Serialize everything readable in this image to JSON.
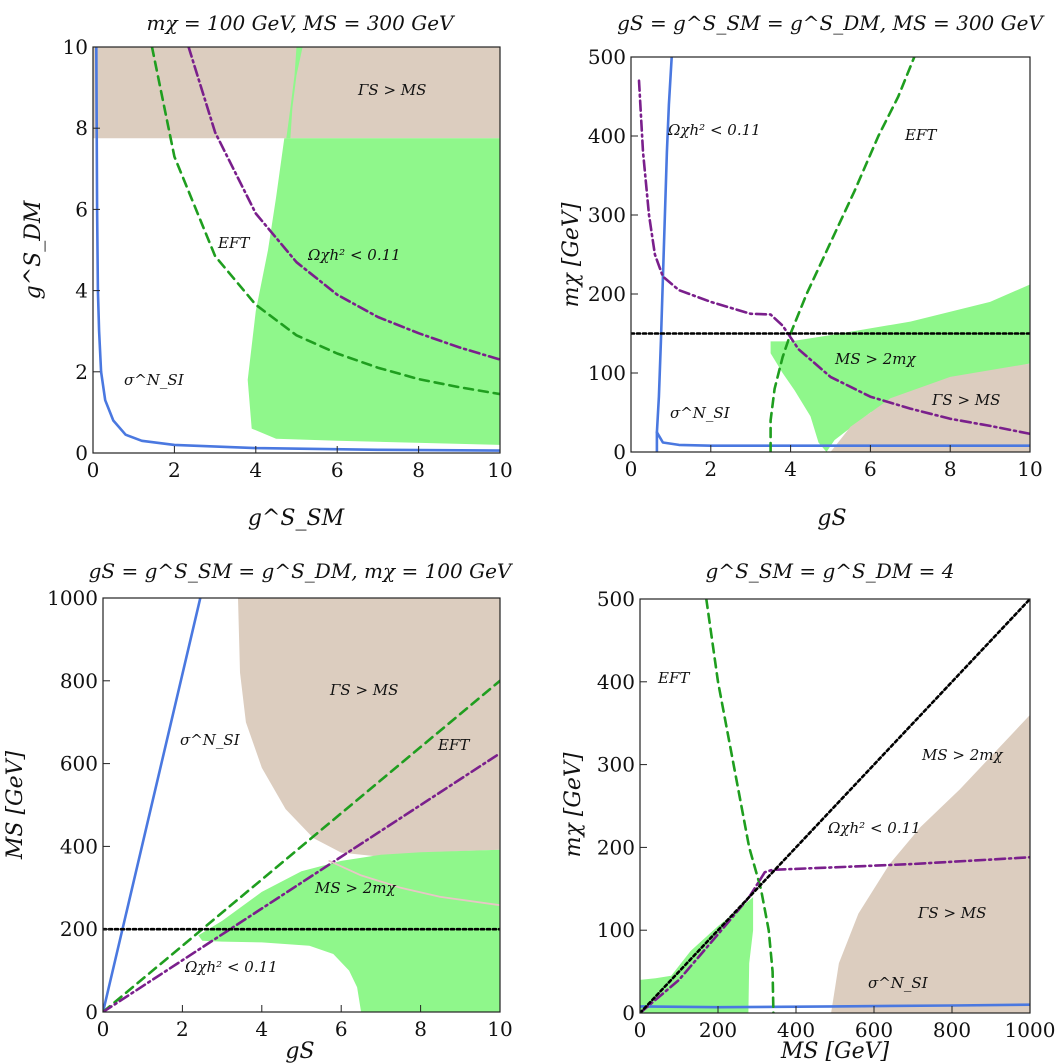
{
  "colors": {
    "green_region": "#8ff78b",
    "tan_region": "#dccdbf",
    "blue_line": "#4a78e0",
    "green_dashed": "#1f9e1f",
    "purple_dashdot": "#7a1f8c",
    "black_dotted": "#000000"
  },
  "chart_data": [
    {
      "type": "area",
      "title": "mχ = 100 GeV, MS = 300 GeV",
      "xlabel": "g^S_SM",
      "ylabel": "g^S_DM",
      "xlim": [
        0,
        10
      ],
      "ylim": [
        0,
        10
      ],
      "xticks": [
        "0",
        "2",
        "4",
        "6",
        "8",
        "10"
      ],
      "yticks": [
        "0",
        "2",
        "4",
        "6",
        "8",
        "10"
      ],
      "annotations": [
        "ΓS > MS",
        "EFT",
        "Ωχh² < 0.11",
        "σ^N_SI"
      ],
      "regions": [
        {
          "color": "tan",
          "polygon": [
            [
              0,
              7.75
            ],
            [
              10,
              7.75
            ],
            [
              10,
              10
            ],
            [
              0,
              10
            ]
          ]
        },
        {
          "color": "green",
          "polygon": [
            [
              3.8,
              1.8
            ],
            [
              4.0,
              3.5
            ],
            [
              4.3,
              5.0
            ],
            [
              4.5,
              6.3
            ],
            [
              4.7,
              7.75
            ],
            [
              10,
              7.75
            ],
            [
              10,
              0.2
            ],
            [
              6,
              0.3
            ],
            [
              4.5,
              0.35
            ],
            [
              3.9,
              0.6
            ]
          ]
        },
        {
          "color": "green",
          "polygon": [
            [
              4.75,
              7.75
            ],
            [
              4.85,
              8.5
            ],
            [
              4.95,
              9.3
            ],
            [
              5.0,
              10
            ],
            [
              5.15,
              10
            ],
            [
              5.0,
              9.3
            ],
            [
              4.9,
              8.5
            ],
            [
              4.85,
              7.75
            ]
          ]
        }
      ],
      "series": [
        {
          "style": "blue",
          "points": [
            [
              0.08,
              10
            ],
            [
              0.1,
              6
            ],
            [
              0.12,
              4
            ],
            [
              0.15,
              3
            ],
            [
              0.2,
              2
            ],
            [
              0.3,
              1.3
            ],
            [
              0.5,
              0.8
            ],
            [
              0.8,
              0.45
            ],
            [
              1.2,
              0.3
            ],
            [
              2,
              0.2
            ],
            [
              4,
              0.12
            ],
            [
              7,
              0.08
            ],
            [
              10,
              0.06
            ]
          ]
        },
        {
          "style": "green_dashed",
          "points": [
            [
              1.45,
              10
            ],
            [
              2,
              7.3
            ],
            [
              3,
              4.85
            ],
            [
              4,
              3.65
            ],
            [
              5,
              2.9
            ],
            [
              6,
              2.45
            ],
            [
              7,
              2.1
            ],
            [
              8,
              1.82
            ],
            [
              9,
              1.62
            ],
            [
              10,
              1.45
            ]
          ]
        },
        {
          "style": "green_dashed",
          "points": [
            [
              3.2,
              7.75
            ]
          ],
          "note": "part of the same dashed family; drawn as one curve"
        },
        {
          "style": "purple_dashdot",
          "points": [
            [
              2.35,
              10
            ],
            [
              3,
              7.9
            ],
            [
              4,
              5.9
            ],
            [
              5,
              4.7
            ],
            [
              6,
              3.9
            ],
            [
              7,
              3.35
            ],
            [
              8,
              2.95
            ],
            [
              9,
              2.6
            ],
            [
              10,
              2.3
            ]
          ]
        }
      ]
    },
    {
      "type": "area",
      "title": "gS = g^S_SM = g^S_DM, MS = 300 GeV",
      "xlabel": "gS",
      "ylabel": "mχ  [GeV]",
      "xlim": [
        0,
        10
      ],
      "ylim": [
        0,
        500
      ],
      "xticks": [
        "0",
        "2",
        "4",
        "6",
        "8",
        "10"
      ],
      "yticks": [
        "0",
        "100",
        "200",
        "300",
        "400",
        "500"
      ],
      "annotations": [
        "Ωχh² < 0.11",
        "EFT",
        "MS > 2mχ",
        "ΓS > MS",
        "σ^N_SI"
      ],
      "regions": [
        {
          "color": "green",
          "polygon": [
            [
              3.5,
              140
            ],
            [
              4,
              140
            ],
            [
              5,
              148
            ],
            [
              7,
              165
            ],
            [
              9,
              190
            ],
            [
              10,
              212
            ],
            [
              10,
              112
            ],
            [
              8,
              90
            ],
            [
              6,
              50
            ],
            [
              5.1,
              15
            ],
            [
              4.9,
              0
            ],
            [
              4.7,
              12
            ],
            [
              4.5,
              45
            ],
            [
              4.1,
              78
            ],
            [
              3.8,
              100
            ],
            [
              3.5,
              125
            ]
          ]
        },
        {
          "color": "tan",
          "polygon": [
            [
              5,
              0
            ],
            [
              5.5,
              32
            ],
            [
              6.5,
              68
            ],
            [
              8,
              95
            ],
            [
              10,
              112
            ],
            [
              10,
              0
            ]
          ]
        }
      ],
      "series": [
        {
          "style": "blue",
          "points": [
            [
              0.65,
              0
            ],
            [
              0.65,
              25
            ],
            [
              0.7,
              70
            ],
            [
              0.75,
              140
            ],
            [
              0.8,
              220
            ],
            [
              0.85,
              300
            ],
            [
              0.9,
              380
            ],
            [
              0.95,
              440
            ],
            [
              1.02,
              500
            ]
          ]
        },
        {
          "style": "blue",
          "points": [
            [
              0.65,
              25
            ],
            [
              0.8,
              12
            ],
            [
              1.2,
              9
            ],
            [
              2,
              8
            ],
            [
              4,
              8
            ],
            [
              6,
              8
            ],
            [
              10,
              8
            ]
          ]
        },
        {
          "style": "green_dashed",
          "points": [
            [
              3.5,
              0
            ],
            [
              3.5,
              40
            ],
            [
              3.6,
              80
            ],
            [
              3.8,
              120
            ],
            [
              4.0,
              150
            ],
            [
              4.4,
              200
            ],
            [
              5.0,
              265
            ],
            [
              5.6,
              330
            ],
            [
              6.2,
              400
            ],
            [
              6.7,
              450
            ],
            [
              7.1,
              500
            ]
          ]
        },
        {
          "style": "purple_dashdot",
          "points": [
            [
              0.2,
              470
            ],
            [
              0.3,
              380
            ],
            [
              0.45,
              300
            ],
            [
              0.6,
              250
            ],
            [
              0.8,
              222
            ],
            [
              1.2,
              205
            ],
            [
              2,
              190
            ],
            [
              3,
              175
            ],
            [
              3.5,
              174
            ],
            [
              3.8,
              160
            ],
            [
              4.2,
              130
            ],
            [
              5,
              95
            ],
            [
              6,
              70
            ],
            [
              7,
              55
            ],
            [
              8,
              42
            ],
            [
              9,
              33
            ],
            [
              10,
              23
            ]
          ]
        },
        {
          "style": "black_dotted",
          "points": [
            [
              0,
              150
            ],
            [
              10,
              150
            ]
          ]
        }
      ]
    },
    {
      "type": "area",
      "title": "gS = g^S_SM = g^S_DM, mχ = 100 GeV",
      "xlabel": "gS",
      "ylabel": "MS  [GeV]",
      "xlim": [
        0,
        10
      ],
      "ylim": [
        0,
        1000
      ],
      "xticks": [
        "0",
        "2",
        "4",
        "6",
        "8",
        "10"
      ],
      "yticks": [
        "0",
        "200",
        "400",
        "600",
        "800",
        "1000"
      ],
      "annotations": [
        "σ^N_SI",
        "ΓS > MS",
        "EFT",
        "MS > 2mχ",
        "Ωχh² < 0.11"
      ],
      "regions": [
        {
          "color": "tan",
          "polygon": [
            [
              3.4,
              1000
            ],
            [
              3.45,
              820
            ],
            [
              3.6,
              700
            ],
            [
              4,
              590
            ],
            [
              4.6,
              490
            ],
            [
              5.3,
              420
            ],
            [
              6,
              385
            ],
            [
              7,
              375
            ],
            [
              8,
              385
            ],
            [
              10,
              392
            ],
            [
              10,
              1000
            ]
          ]
        },
        {
          "color": "green",
          "polygon": [
            [
              2.4,
              185
            ],
            [
              3,
              220
            ],
            [
              4,
              290
            ],
            [
              5,
              340
            ],
            [
              6,
              365
            ],
            [
              7,
              380
            ],
            [
              8,
              386
            ],
            [
              10,
              392
            ],
            [
              10,
              0
            ],
            [
              6.5,
              0
            ],
            [
              6.4,
              60
            ],
            [
              6.2,
              100
            ],
            [
              5.8,
              140
            ],
            [
              5.2,
              160
            ],
            [
              4,
              168
            ],
            [
              3,
              170
            ],
            [
              2.5,
              172
            ]
          ]
        }
      ],
      "series": [
        {
          "style": "blue",
          "points": [
            [
              0,
              0
            ],
            [
              2.45,
              1000
            ]
          ]
        },
        {
          "style": "green_dashed",
          "points": [
            [
              0,
              0
            ],
            [
              10,
              800
            ]
          ]
        },
        {
          "style": "purple_dashdot",
          "points": [
            [
              0,
              0
            ],
            [
              10,
              625
            ]
          ]
        },
        {
          "style": "black_dotted",
          "points": [
            [
              0,
              200
            ],
            [
              10,
              200
            ]
          ]
        },
        {
          "style": "pink_thin",
          "points": [
            [
              5.7,
              365
            ],
            [
              6.5,
              330
            ],
            [
              7.5,
              300
            ],
            [
              8.5,
              278
            ],
            [
              10,
              258
            ]
          ]
        }
      ]
    },
    {
      "type": "area",
      "title": "g^S_SM = g^S_DM = 4",
      "xlabel": "MS  [GeV]",
      "ylabel": "mχ  [GeV]",
      "xlim": [
        0,
        1000
      ],
      "ylim": [
        0,
        500
      ],
      "xticks": [
        "0",
        "200",
        "400",
        "600",
        "800",
        "1000"
      ],
      "yticks": [
        "0",
        "100",
        "200",
        "300",
        "400",
        "500"
      ],
      "annotations": [
        "EFT",
        "MS > 2mχ",
        "Ωχh² < 0.11",
        "ΓS > MS",
        "σ^N_SI"
      ],
      "regions": [
        {
          "color": "green",
          "polygon": [
            [
              0,
              40
            ],
            [
              40,
              42
            ],
            [
              80,
              45
            ],
            [
              130,
              75
            ],
            [
              200,
              105
            ],
            [
              260,
              128
            ],
            [
              290,
              140
            ],
            [
              290,
              100
            ],
            [
              280,
              60
            ],
            [
              278,
              0
            ],
            [
              0,
              0
            ]
          ]
        },
        {
          "color": "tan",
          "polygon": [
            [
              490,
              0
            ],
            [
              510,
              60
            ],
            [
              560,
              120
            ],
            [
              640,
              180
            ],
            [
              720,
              225
            ],
            [
              820,
              270
            ],
            [
              1000,
              360
            ],
            [
              1000,
              0
            ]
          ]
        }
      ],
      "series": [
        {
          "style": "blue",
          "points": [
            [
              0,
              8
            ],
            [
              200,
              7
            ],
            [
              500,
              8
            ],
            [
              800,
              9
            ],
            [
              1000,
              10
            ]
          ]
        },
        {
          "style": "green_dashed",
          "points": [
            [
              170,
              500
            ],
            [
              200,
              400
            ],
            [
              240,
              300
            ],
            [
              280,
              200
            ],
            [
              310,
              150
            ],
            [
              330,
              100
            ],
            [
              340,
              50
            ],
            [
              342,
              0
            ]
          ]
        },
        {
          "style": "purple_dashdot",
          "points": [
            [
              0,
              0
            ],
            [
              100,
              40
            ],
            [
              200,
              95
            ],
            [
              280,
              140
            ],
            [
              320,
              170
            ],
            [
              340,
              173
            ],
            [
              500,
              176
            ],
            [
              700,
              180
            ],
            [
              1000,
              188
            ]
          ]
        },
        {
          "style": "black_dotted",
          "points": [
            [
              0,
              0
            ],
            [
              1000,
              500
            ]
          ]
        }
      ]
    }
  ]
}
